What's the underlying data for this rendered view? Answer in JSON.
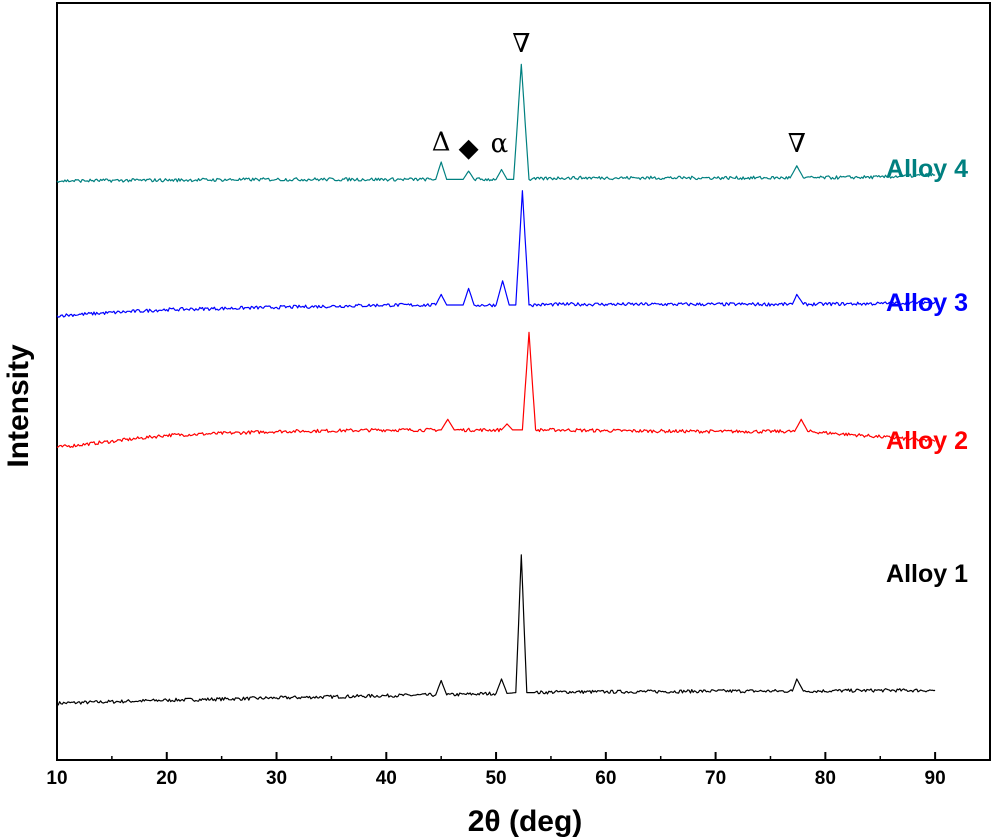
{
  "chart_data": {
    "type": "line",
    "xlabel": "2θ (deg)",
    "ylabel": "Intensity",
    "xlim": [
      10,
      95
    ],
    "xticks": [
      10,
      20,
      30,
      40,
      50,
      60,
      70,
      80,
      90
    ],
    "ylim": [
      0,
      100
    ],
    "yticks_shown": false,
    "grid": false,
    "legend": "inline labels at right of each trace",
    "series": [
      {
        "name": "Alloy 1",
        "color": "#000000",
        "x": [
          10,
          20,
          30,
          40,
          44.5,
          45,
          45.5,
          50,
          50.5,
          51,
          51.8,
          52.3,
          52.8,
          53.5,
          56,
          60,
          70,
          77,
          77.4,
          78,
          85,
          90
        ],
        "y": [
          7.5,
          7.9,
          8.2,
          8.5,
          8.6,
          10.5,
          8.6,
          8.8,
          10.7,
          8.8,
          8.9,
          27.1,
          8.9,
          8.9,
          9.0,
          9.0,
          9.1,
          9.1,
          10.7,
          9.1,
          9.2,
          9.2
        ]
      },
      {
        "name": "Alloy 2",
        "color": "#ff0000",
        "x": [
          10,
          20,
          30,
          40,
          45,
          45.6,
          46.2,
          50.5,
          51,
          51.5,
          52.4,
          53,
          53.6,
          56,
          60,
          70,
          77.2,
          77.8,
          78.4,
          85,
          90
        ],
        "y": [
          41.3,
          42.9,
          43.4,
          43.6,
          43.6,
          45.0,
          43.6,
          43.6,
          44.4,
          43.6,
          43.6,
          56.5,
          43.6,
          43.6,
          43.5,
          43.4,
          43.4,
          45.0,
          43.4,
          42.7,
          42.1
        ]
      },
      {
        "name": "Alloy 3",
        "color": "#0000ff",
        "x": [
          10,
          20,
          30,
          40,
          44.5,
          45,
          45.5,
          47,
          47.5,
          48,
          50,
          50.6,
          51.2,
          51.8,
          52.4,
          53,
          56,
          60,
          70,
          77,
          77.4,
          78,
          85,
          90
        ],
        "y": [
          58.7,
          59.5,
          59.8,
          60.1,
          60.1,
          61.5,
          60.1,
          60.1,
          62.3,
          60.1,
          60.1,
          63.3,
          60.1,
          60.1,
          75.2,
          60.1,
          60.2,
          60.2,
          60.2,
          60.2,
          61.5,
          60.2,
          60.3,
          60.5
        ]
      },
      {
        "name": "Alloy 4",
        "color": "#008080",
        "x": [
          10,
          20,
          30,
          40,
          44.5,
          45,
          45.5,
          47,
          47.5,
          48,
          50,
          50.5,
          51,
          51.6,
          52.3,
          53,
          56,
          60,
          70,
          76.8,
          77.4,
          78,
          85,
          90
        ],
        "y": [
          76.5,
          76.6,
          76.7,
          76.7,
          76.7,
          79.0,
          76.7,
          76.7,
          77.8,
          76.7,
          76.7,
          78.0,
          76.7,
          76.7,
          91.9,
          76.7,
          76.9,
          76.9,
          76.9,
          76.9,
          78.5,
          76.9,
          77.0,
          77.3
        ]
      }
    ],
    "annotations": [
      {
        "text": "Δ",
        "x": 45.0,
        "y": 80.5,
        "color": "#000000"
      },
      {
        "text": "◆",
        "x": 47.5,
        "y": 79.7,
        "color": "#000000"
      },
      {
        "text": "α",
        "x": 50.3,
        "y": 80.3,
        "color": "#000000"
      },
      {
        "text": "∇",
        "x": 52.3,
        "y": 93.5,
        "color": "#000000"
      },
      {
        "text": "∇",
        "x": 77.4,
        "y": 80.3,
        "color": "#000000"
      }
    ]
  }
}
